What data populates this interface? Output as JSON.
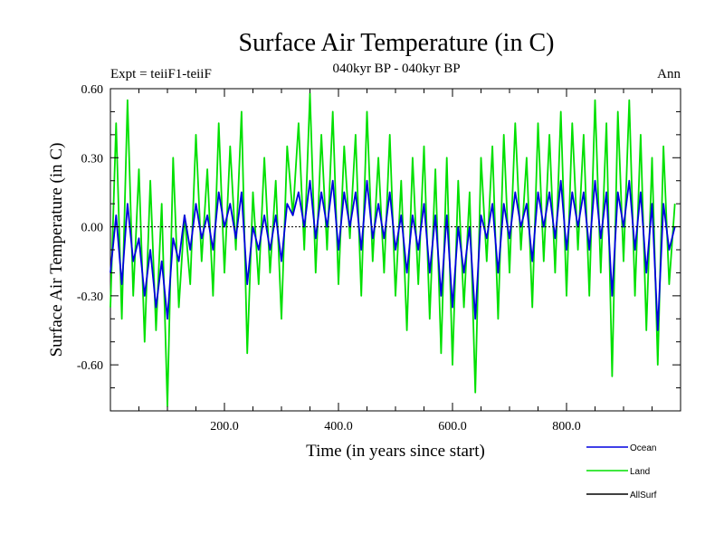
{
  "chart_data": {
    "type": "line",
    "title": "Surface Air Temperature (in C)",
    "subtitle": "040kyr BP - 040kyr BP",
    "left_label": "Expt = teiiF1-teiiF",
    "right_label": "Ann",
    "xlabel": "Time (in years since start)",
    "ylabel": "Surface Air Temperature (in C)",
    "xlim": [
      0,
      1000
    ],
    "ylim": [
      -0.8,
      0.6
    ],
    "xticks": [
      {
        "value": 200,
        "label": "200.0"
      },
      {
        "value": 400,
        "label": "400.0"
      },
      {
        "value": 600,
        "label": "600.0"
      },
      {
        "value": 800,
        "label": "800.0"
      }
    ],
    "yticks": [
      {
        "value": 0.6,
        "label": "0.60"
      },
      {
        "value": 0.3,
        "label": "0.30"
      },
      {
        "value": 0.0,
        "label": "0.00"
      },
      {
        "value": -0.3,
        "label": "-0.30"
      },
      {
        "value": -0.6,
        "label": "-0.60"
      }
    ],
    "zero_line": true,
    "legend_position": "bottom-right",
    "series": [
      {
        "name": "Land",
        "color": "#00e000",
        "x": [
          0,
          10,
          20,
          30,
          40,
          50,
          60,
          70,
          80,
          90,
          100,
          110,
          120,
          130,
          140,
          150,
          160,
          170,
          180,
          190,
          200,
          210,
          220,
          230,
          240,
          250,
          260,
          270,
          280,
          290,
          300,
          310,
          320,
          330,
          340,
          350,
          360,
          370,
          380,
          390,
          400,
          410,
          420,
          430,
          440,
          450,
          460,
          470,
          480,
          490,
          500,
          510,
          520,
          530,
          540,
          550,
          560,
          570,
          580,
          590,
          600,
          610,
          620,
          630,
          640,
          650,
          660,
          670,
          680,
          690,
          700,
          710,
          720,
          730,
          740,
          750,
          760,
          770,
          780,
          790,
          800,
          810,
          820,
          830,
          840,
          850,
          860,
          870,
          880,
          890,
          900,
          910,
          920,
          930,
          940,
          950,
          960,
          970,
          980,
          990
        ],
        "y": [
          -0.35,
          0.45,
          -0.4,
          0.55,
          -0.3,
          0.25,
          -0.5,
          0.2,
          -0.45,
          0.1,
          -0.78,
          0.3,
          -0.35,
          0.05,
          -0.25,
          0.4,
          -0.15,
          0.25,
          -0.3,
          0.45,
          -0.2,
          0.35,
          -0.1,
          0.5,
          -0.55,
          0.15,
          -0.25,
          0.3,
          -0.2,
          0.2,
          -0.4,
          0.35,
          0.05,
          0.45,
          -0.1,
          0.58,
          -0.2,
          0.4,
          -0.1,
          0.5,
          -0.25,
          0.35,
          -0.05,
          0.4,
          -0.3,
          0.5,
          -0.15,
          0.3,
          -0.2,
          0.4,
          -0.3,
          0.2,
          -0.45,
          0.3,
          -0.25,
          0.35,
          -0.4,
          0.25,
          -0.55,
          0.3,
          -0.6,
          0.2,
          -0.35,
          0.15,
          -0.72,
          0.3,
          -0.15,
          0.35,
          -0.4,
          0.4,
          -0.2,
          0.45,
          -0.1,
          0.3,
          -0.35,
          0.45,
          -0.15,
          0.4,
          -0.2,
          0.5,
          -0.3,
          0.45,
          -0.1,
          0.4,
          -0.3,
          0.55,
          -0.2,
          0.45,
          -0.65,
          0.5,
          -0.15,
          0.55,
          -0.3,
          0.4,
          -0.45,
          0.3,
          -0.6,
          0.35,
          -0.25,
          0.1
        ]
      },
      {
        "name": "Ocean",
        "color": "#0000e0",
        "x": [
          0,
          10,
          20,
          30,
          40,
          50,
          60,
          70,
          80,
          90,
          100,
          110,
          120,
          130,
          140,
          150,
          160,
          170,
          180,
          190,
          200,
          210,
          220,
          230,
          240,
          250,
          260,
          270,
          280,
          290,
          300,
          310,
          320,
          330,
          340,
          350,
          360,
          370,
          380,
          390,
          400,
          410,
          420,
          430,
          440,
          450,
          460,
          470,
          480,
          490,
          500,
          510,
          520,
          530,
          540,
          550,
          560,
          570,
          580,
          590,
          600,
          610,
          620,
          630,
          640,
          650,
          660,
          670,
          680,
          690,
          700,
          710,
          720,
          730,
          740,
          750,
          760,
          770,
          780,
          790,
          800,
          810,
          820,
          830,
          840,
          850,
          860,
          870,
          880,
          890,
          900,
          910,
          920,
          930,
          940,
          950,
          960,
          970,
          980,
          990
        ],
        "y": [
          -0.2,
          0.05,
          -0.25,
          0.1,
          -0.15,
          -0.05,
          -0.3,
          -0.1,
          -0.35,
          -0.15,
          -0.4,
          -0.05,
          -0.15,
          0.05,
          -0.1,
          0.1,
          -0.05,
          0.05,
          -0.1,
          0.15,
          0.0,
          0.1,
          -0.05,
          0.15,
          -0.25,
          0.0,
          -0.1,
          0.05,
          -0.1,
          0.05,
          -0.15,
          0.1,
          0.05,
          0.15,
          0.0,
          0.2,
          -0.05,
          0.15,
          0.0,
          0.2,
          -0.1,
          0.15,
          0.0,
          0.15,
          -0.1,
          0.2,
          -0.05,
          0.1,
          -0.05,
          0.15,
          -0.1,
          0.05,
          -0.2,
          0.05,
          -0.1,
          0.1,
          -0.2,
          0.05,
          -0.3,
          0.05,
          -0.35,
          0.0,
          -0.2,
          0.0,
          -0.4,
          0.05,
          -0.05,
          0.1,
          -0.2,
          0.1,
          -0.05,
          0.15,
          0.0,
          0.1,
          -0.15,
          0.15,
          0.0,
          0.15,
          -0.05,
          0.2,
          -0.1,
          0.15,
          0.0,
          0.15,
          -0.1,
          0.2,
          -0.05,
          0.15,
          -0.3,
          0.15,
          0.0,
          0.2,
          -0.1,
          0.15,
          -0.2,
          0.1,
          -0.45,
          0.1,
          -0.1,
          0.0
        ]
      },
      {
        "name": "AllSurf",
        "color": "#000000",
        "x": [],
        "y": []
      }
    ]
  }
}
